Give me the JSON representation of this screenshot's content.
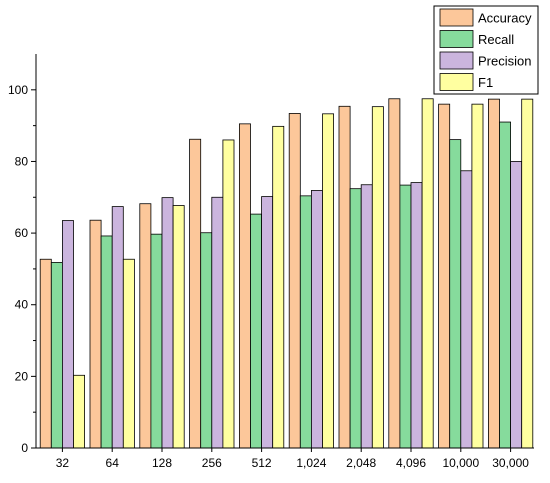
{
  "chart_data": {
    "type": "bar",
    "title": "",
    "xlabel": "",
    "ylabel": "",
    "categories": [
      "32",
      "64",
      "128",
      "256",
      "512",
      "1,024",
      "2,048",
      "4,096",
      "10,000",
      "30,000"
    ],
    "ylim": [
      0,
      110
    ],
    "yticks": [
      0,
      20,
      40,
      60,
      80,
      100
    ],
    "grid": false,
    "legend_position": "top-right",
    "series": [
      {
        "name": "Accuracy",
        "color": "#FCC79A",
        "values": [
          52.7,
          63.6,
          68.2,
          86.2,
          90.5,
          93.4,
          95.4,
          97.5,
          96.0,
          97.4
        ]
      },
      {
        "name": "Recall",
        "color": "#86DB9C",
        "values": [
          51.8,
          59.2,
          59.7,
          60.1,
          65.3,
          70.4,
          72.4,
          73.4,
          86.1,
          91.0
        ]
      },
      {
        "name": "Precision",
        "color": "#CBB5DE",
        "values": [
          63.5,
          67.4,
          69.9,
          70.0,
          70.2,
          71.9,
          73.5,
          74.1,
          77.4,
          80.0
        ]
      },
      {
        "name": "F1",
        "color": "#FFFFA0",
        "values": [
          20.3,
          52.7,
          67.7,
          86.0,
          89.8,
          93.3,
          95.3,
          97.5,
          96.0,
          97.4
        ]
      }
    ]
  }
}
